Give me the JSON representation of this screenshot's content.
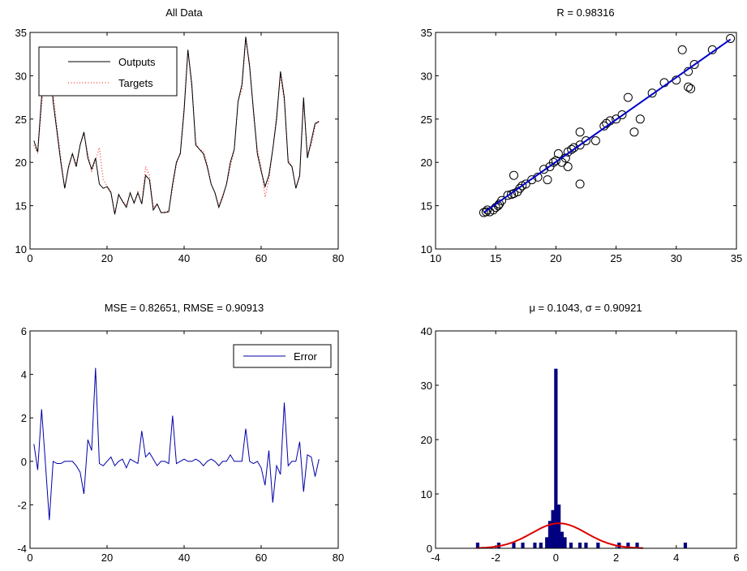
{
  "chart_data": [
    {
      "type": "line",
      "title": "All Data",
      "xlabel": "",
      "ylabel": "",
      "xlim": [
        0,
        80
      ],
      "ylim": [
        10,
        35
      ],
      "xticks": [
        0,
        20,
        40,
        60,
        80
      ],
      "yticks": [
        10,
        15,
        20,
        25,
        30,
        35
      ],
      "grid": false,
      "legend": "top-left",
      "x": [
        1,
        2,
        3,
        4,
        5,
        6,
        7,
        8,
        9,
        10,
        11,
        12,
        13,
        14,
        15,
        16,
        17,
        18,
        19,
        20,
        21,
        22,
        23,
        24,
        25,
        26,
        27,
        28,
        29,
        30,
        31,
        32,
        33,
        34,
        35,
        36,
        37,
        38,
        39,
        40,
        41,
        42,
        43,
        44,
        45,
        46,
        47,
        48,
        49,
        50,
        51,
        52,
        53,
        54,
        55,
        56,
        57,
        58,
        59,
        60,
        61,
        62,
        63,
        64,
        65,
        66,
        67,
        68,
        69,
        70,
        71,
        72,
        73,
        74,
        75
      ],
      "series": [
        {
          "name": "Outputs",
          "color": "#000000",
          "style": "solid",
          "values": [
            22.5,
            21.2,
            27.5,
            31.5,
            33.0,
            27.0,
            23.5,
            20.0,
            17.0,
            19.5,
            21.0,
            19.5,
            22.0,
            23.5,
            20.5,
            19.2,
            20.5,
            17.5,
            17.0,
            17.2,
            16.5,
            14.0,
            16.3,
            15.5,
            14.8,
            16.5,
            15.3,
            16.5,
            15.2,
            18.5,
            18.0,
            14.5,
            15.2,
            14.2,
            14.2,
            14.3,
            17.5,
            20.0,
            21.0,
            26.0,
            33.0,
            29.0,
            22.0,
            21.5,
            21.0,
            19.5,
            17.5,
            16.5,
            14.8,
            16.0,
            17.5,
            20.0,
            21.5,
            27.0,
            29.0,
            34.5,
            31.0,
            26.0,
            21.0,
            19.0,
            17.2,
            18.5,
            21.5,
            25.0,
            30.5,
            27.5,
            20.0,
            19.5,
            17.0,
            18.5,
            27.5,
            20.5,
            22.5,
            24.5,
            24.7
          ]
        },
        {
          "name": "Targets",
          "color": "#ff0000",
          "style": "dotted",
          "values": [
            22.0,
            21.0,
            26.5,
            31.2,
            33.0,
            28.0,
            24.0,
            20.5,
            17.0,
            19.3,
            21.0,
            19.8,
            22.0,
            23.3,
            21.0,
            19.0,
            20.2,
            21.7,
            18.0,
            17.3,
            16.6,
            14.2,
            16.2,
            15.6,
            15.0,
            16.4,
            15.4,
            16.6,
            15.2,
            19.5,
            18.5,
            14.8,
            15.2,
            14.2,
            14.3,
            14.4,
            17.0,
            19.8,
            21.2,
            26.5,
            33.0,
            28.5,
            22.3,
            21.5,
            21.3,
            19.8,
            17.5,
            16.5,
            15.0,
            16.2,
            17.4,
            19.5,
            21.4,
            27.0,
            28.5,
            34.0,
            31.5,
            25.5,
            21.5,
            19.5,
            16.0,
            18.0,
            21.5,
            25.5,
            30.0,
            27.0,
            20.3,
            19.5,
            17.0,
            18.3,
            27.0,
            21.0,
            22.0,
            24.2,
            24.8
          ]
        }
      ]
    },
    {
      "type": "scatter",
      "title": "R = 0.98316",
      "xlabel": "",
      "ylabel": "",
      "xlim": [
        10,
        35
      ],
      "ylim": [
        10,
        35
      ],
      "xticks": [
        10,
        15,
        20,
        25,
        30,
        35
      ],
      "yticks": [
        10,
        15,
        20,
        25,
        30,
        35
      ],
      "grid": false,
      "points": [
        [
          14.0,
          14.2
        ],
        [
          14.2,
          14.3
        ],
        [
          14.3,
          14.5
        ],
        [
          14.5,
          14.3
        ],
        [
          14.8,
          14.5
        ],
        [
          15.0,
          14.8
        ],
        [
          15.2,
          15.0
        ],
        [
          15.3,
          15.2
        ],
        [
          15.5,
          15.6
        ],
        [
          16.0,
          16.2
        ],
        [
          16.3,
          16.3
        ],
        [
          16.5,
          16.4
        ],
        [
          16.5,
          18.5
        ],
        [
          16.8,
          16.6
        ],
        [
          17.0,
          17.0
        ],
        [
          17.2,
          17.3
        ],
        [
          17.5,
          17.5
        ],
        [
          18.0,
          18.0
        ],
        [
          18.5,
          18.3
        ],
        [
          19.0,
          19.2
        ],
        [
          19.3,
          18.0
        ],
        [
          19.5,
          19.5
        ],
        [
          19.8,
          20.0
        ],
        [
          20.0,
          20.2
        ],
        [
          20.2,
          21.0
        ],
        [
          20.5,
          20.0
        ],
        [
          20.8,
          20.5
        ],
        [
          21.0,
          19.5
        ],
        [
          21.0,
          21.2
        ],
        [
          21.3,
          21.5
        ],
        [
          21.5,
          21.7
        ],
        [
          22.0,
          17.5
        ],
        [
          22.0,
          22.0
        ],
        [
          22.0,
          23.5
        ],
        [
          22.5,
          22.5
        ],
        [
          23.3,
          22.5
        ],
        [
          24.0,
          24.2
        ],
        [
          24.2,
          24.5
        ],
        [
          24.5,
          24.8
        ],
        [
          25.0,
          25.0
        ],
        [
          25.5,
          25.5
        ],
        [
          26.0,
          27.5
        ],
        [
          26.5,
          23.5
        ],
        [
          27.0,
          25.0
        ],
        [
          28.0,
          28.0
        ],
        [
          29.0,
          29.2
        ],
        [
          30.0,
          29.5
        ],
        [
          30.5,
          33.0
        ],
        [
          31.0,
          28.7
        ],
        [
          31.2,
          28.5
        ],
        [
          31.0,
          30.5
        ],
        [
          31.5,
          31.3
        ],
        [
          33.0,
          33.0
        ],
        [
          34.5,
          34.3
        ]
      ],
      "fit": {
        "x": [
          14.0,
          34.5
        ],
        "y": [
          14.2,
          34.2
        ],
        "color": "#0000cc"
      }
    },
    {
      "type": "line",
      "title": "MSE = 0.82651, RMSE = 0.90913",
      "xlabel": "",
      "ylabel": "",
      "xlim": [
        0,
        80
      ],
      "ylim": [
        -4,
        6
      ],
      "xticks": [
        0,
        20,
        40,
        60,
        80
      ],
      "yticks": [
        -4,
        -2,
        0,
        2,
        4,
        6
      ],
      "grid": false,
      "legend": "top-right",
      "x": [
        1,
        2,
        3,
        4,
        5,
        6,
        7,
        8,
        9,
        10,
        11,
        12,
        13,
        14,
        15,
        16,
        17,
        18,
        19,
        20,
        21,
        22,
        23,
        24,
        25,
        26,
        27,
        28,
        29,
        30,
        31,
        32,
        33,
        34,
        35,
        36,
        37,
        38,
        39,
        40,
        41,
        42,
        43,
        44,
        45,
        46,
        47,
        48,
        49,
        50,
        51,
        52,
        53,
        54,
        55,
        56,
        57,
        58,
        59,
        60,
        61,
        62,
        63,
        64,
        65,
        66,
        67,
        68,
        69,
        70,
        71,
        72,
        73,
        74,
        75
      ],
      "series": [
        {
          "name": "Error",
          "color": "#0000aa",
          "style": "solid",
          "values": [
            0.8,
            -0.4,
            2.4,
            -0.1,
            -2.7,
            0.0,
            -0.1,
            -0.1,
            0.0,
            0.0,
            0.0,
            -0.2,
            -0.5,
            -1.5,
            1.0,
            0.5,
            4.3,
            -0.1,
            -0.2,
            0.0,
            0.2,
            -0.2,
            0.0,
            0.1,
            -0.3,
            0.1,
            0.0,
            -0.1,
            1.4,
            0.2,
            0.4,
            0.1,
            -0.2,
            0.0,
            0.0,
            -0.1,
            2.1,
            -0.1,
            0.0,
            0.1,
            0.0,
            0.0,
            0.1,
            0.0,
            -0.2,
            0.0,
            0.1,
            0.0,
            -0.2,
            0.0,
            0.0,
            0.3,
            0.0,
            0.0,
            0.0,
            1.5,
            0.0,
            -0.1,
            0.0,
            -0.3,
            -1.1,
            0.5,
            -1.9,
            -0.2,
            -0.6,
            2.7,
            -0.2,
            0.0,
            0.0,
            0.9,
            -1.4,
            0.3,
            0.2,
            -0.7,
            0.1
          ]
        }
      ]
    },
    {
      "type": "bar",
      "title": "μ = 0.1043, σ = 0.90921",
      "xlabel": "",
      "ylabel": "",
      "xlim": [
        -4,
        6
      ],
      "ylim": [
        0,
        40
      ],
      "xticks": [
        -4,
        -2,
        0,
        2,
        4,
        6
      ],
      "yticks": [
        0,
        10,
        20,
        30,
        40
      ],
      "grid": false,
      "bins": [
        {
          "x": -2.6,
          "count": 1
        },
        {
          "x": -1.9,
          "count": 1
        },
        {
          "x": -1.4,
          "count": 1
        },
        {
          "x": -1.1,
          "count": 1
        },
        {
          "x": -0.7,
          "count": 1
        },
        {
          "x": -0.5,
          "count": 1
        },
        {
          "x": -0.3,
          "count": 2
        },
        {
          "x": -0.2,
          "count": 5
        },
        {
          "x": -0.1,
          "count": 7
        },
        {
          "x": 0.0,
          "count": 33
        },
        {
          "x": 0.1,
          "count": 8
        },
        {
          "x": 0.2,
          "count": 3
        },
        {
          "x": 0.3,
          "count": 2
        },
        {
          "x": 0.5,
          "count": 1
        },
        {
          "x": 0.8,
          "count": 1
        },
        {
          "x": 1.0,
          "count": 1
        },
        {
          "x": 1.4,
          "count": 1
        },
        {
          "x": 2.1,
          "count": 1
        },
        {
          "x": 2.4,
          "count": 1
        },
        {
          "x": 2.7,
          "count": 1
        },
        {
          "x": 4.3,
          "count": 1
        }
      ],
      "bar_color": "#000080",
      "fit": {
        "type": "normal",
        "mu": 0.1043,
        "sigma": 0.90921,
        "peak": 4.6,
        "color": "#dd0000"
      }
    }
  ]
}
